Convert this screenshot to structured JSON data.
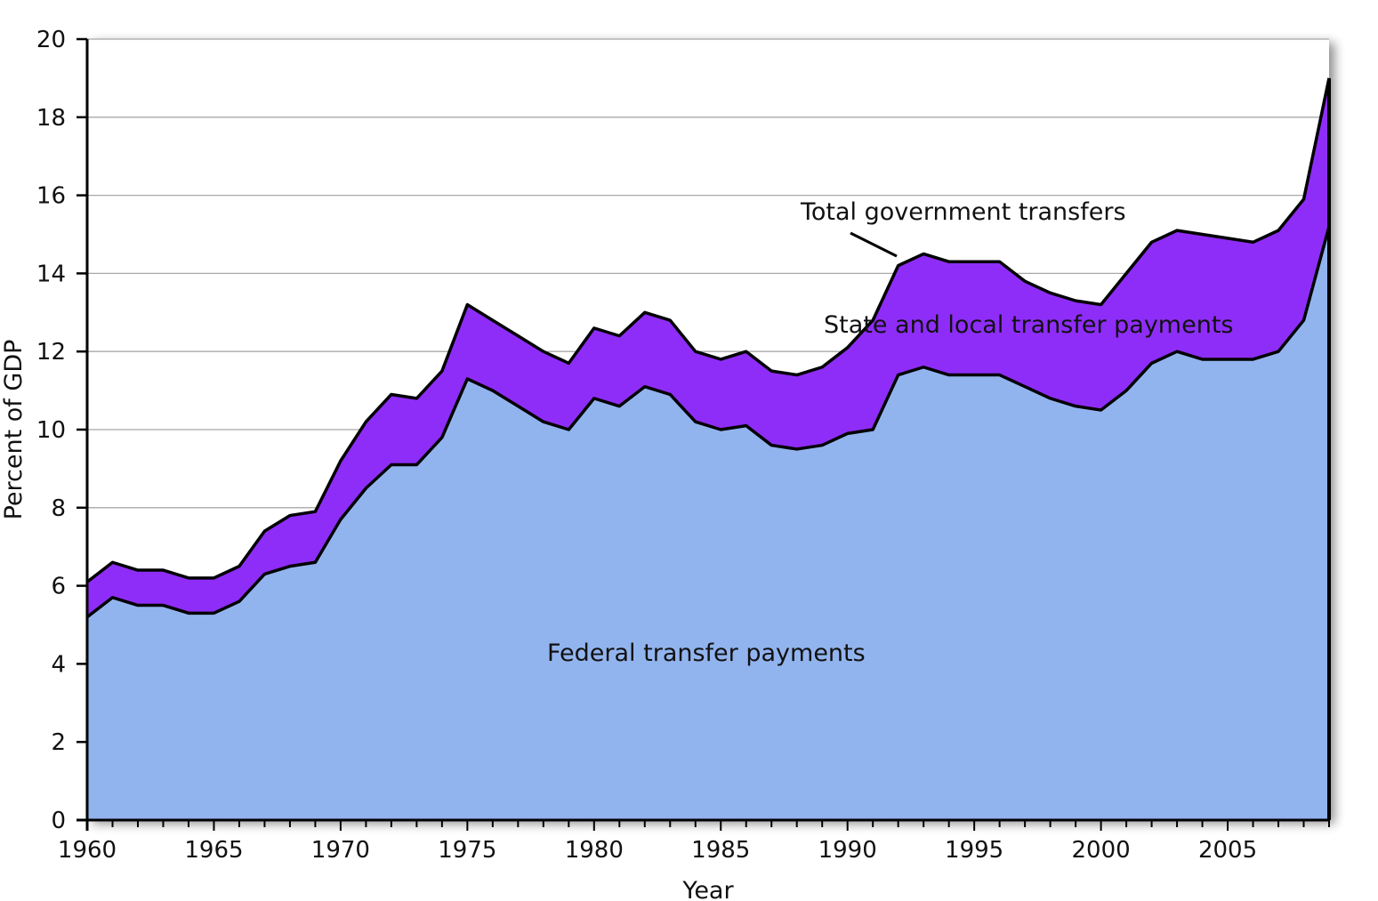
{
  "chart_data": {
    "type": "area",
    "stacked": true,
    "xlabel": "Year",
    "ylabel": "Percent of GDP",
    "xlim": [
      1960,
      2009
    ],
    "ylim": [
      0,
      20
    ],
    "x_ticks": [
      1960,
      1965,
      1970,
      1975,
      1980,
      1985,
      1990,
      1995,
      2000,
      2005
    ],
    "y_ticks": [
      0,
      2,
      4,
      6,
      8,
      10,
      12,
      14,
      16,
      18,
      20
    ],
    "grid": "horizontal",
    "x": [
      1960,
      1961,
      1962,
      1963,
      1964,
      1965,
      1966,
      1967,
      1968,
      1969,
      1970,
      1971,
      1972,
      1973,
      1974,
      1975,
      1976,
      1977,
      1978,
      1979,
      1980,
      1981,
      1982,
      1983,
      1984,
      1985,
      1986,
      1987,
      1988,
      1989,
      1990,
      1991,
      1992,
      1993,
      1994,
      1995,
      1996,
      1997,
      1998,
      1999,
      2000,
      2001,
      2002,
      2003,
      2004,
      2005,
      2006,
      2007,
      2008,
      2009
    ],
    "series": [
      {
        "name": "Federal transfer payments",
        "color": "#92b4ee",
        "values": [
          5.2,
          5.7,
          5.5,
          5.5,
          5.3,
          5.3,
          5.6,
          6.3,
          6.5,
          6.6,
          7.7,
          8.5,
          9.1,
          9.1,
          9.8,
          11.3,
          11.0,
          10.6,
          10.2,
          10.0,
          10.8,
          10.6,
          11.1,
          10.9,
          10.2,
          10.0,
          10.1,
          9.6,
          9.5,
          9.6,
          9.9,
          10.0,
          11.4,
          11.6,
          11.4,
          11.4,
          11.4,
          11.1,
          10.8,
          10.6,
          10.5,
          11.0,
          11.7,
          12.0,
          11.8,
          11.8,
          11.8,
          12.0,
          12.8,
          15.2
        ]
      },
      {
        "name": "State and local transfer payments",
        "color": "#8f2df8",
        "values": [
          0.9,
          0.9,
          0.9,
          0.9,
          0.9,
          0.9,
          0.9,
          1.1,
          1.3,
          1.3,
          1.5,
          1.7,
          1.8,
          1.7,
          1.7,
          1.9,
          1.8,
          1.8,
          1.8,
          1.7,
          1.8,
          1.8,
          1.9,
          1.9,
          1.8,
          1.8,
          1.9,
          1.9,
          1.9,
          2.0,
          2.2,
          2.8,
          2.8,
          2.9,
          2.9,
          2.9,
          2.9,
          2.7,
          2.7,
          2.7,
          2.7,
          3.0,
          3.1,
          3.1,
          3.2,
          3.1,
          3.0,
          3.1,
          3.1,
          3.8
        ]
      }
    ],
    "annotations": [
      {
        "text": "Total government transfers",
        "points_to_x": 1993
      },
      {
        "text": "State and local transfer payments"
      },
      {
        "text": "Federal transfer payments"
      }
    ]
  }
}
